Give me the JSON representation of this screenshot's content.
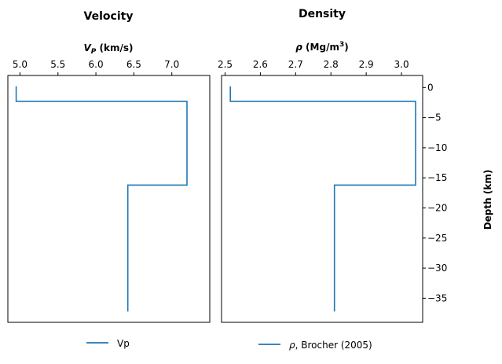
{
  "chart_data": [
    {
      "type": "line",
      "title": "Velocity",
      "xlabel_symbol": "V",
      "xlabel_subscript": "P",
      "xlabel_units": " (km/s)",
      "xlim": [
        4.84,
        7.5
      ],
      "xticks": [
        5.0,
        5.5,
        6.0,
        6.5,
        7.0
      ],
      "xtick_labels": [
        "5.0",
        "5.5",
        "6.0",
        "6.5",
        "7.0"
      ],
      "ylim": [
        2,
        -39
      ],
      "ylabel": "",
      "series": [
        {
          "name": "Vp",
          "color": "#1f77b4",
          "x": [
            4.95,
            4.95,
            7.2,
            7.2,
            6.42,
            6.42
          ],
          "y": [
            0.2,
            -2.3,
            -2.3,
            -16.2,
            -16.2,
            -37.2
          ]
        }
      ],
      "legend": "bottom-center"
    },
    {
      "type": "line",
      "title": "Density",
      "xlabel_symbol": "ρ",
      "xlabel_units": " (Mg/m",
      "xlabel_superscript": "3",
      "xlabel_close": ")",
      "xlim": [
        2.49,
        3.06
      ],
      "xticks": [
        2.5,
        2.6,
        2.7,
        2.8,
        2.9,
        3.0
      ],
      "xtick_labels": [
        "2.5",
        "2.6",
        "2.7",
        "2.8",
        "2.9",
        "3.0"
      ],
      "ylim": [
        2,
        -39
      ],
      "ylabel": "Depth (km)",
      "yticks": [
        0,
        -5,
        -10,
        -15,
        -20,
        -25,
        -30,
        -35
      ],
      "ytick_labels": [
        "0",
        "−5",
        "−10",
        "−15",
        "−20",
        "−25",
        "−30",
        "−35"
      ],
      "series": [
        {
          "name_symbol": "ρ",
          "name_rest": ", Brocher (2005)",
          "color": "#1f77b4",
          "x": [
            2.515,
            2.515,
            3.04,
            3.04,
            2.81,
            2.81
          ],
          "y": [
            0.2,
            -2.3,
            -2.3,
            -16.2,
            -16.2,
            -37.2
          ]
        }
      ],
      "legend": "bottom-center"
    }
  ]
}
